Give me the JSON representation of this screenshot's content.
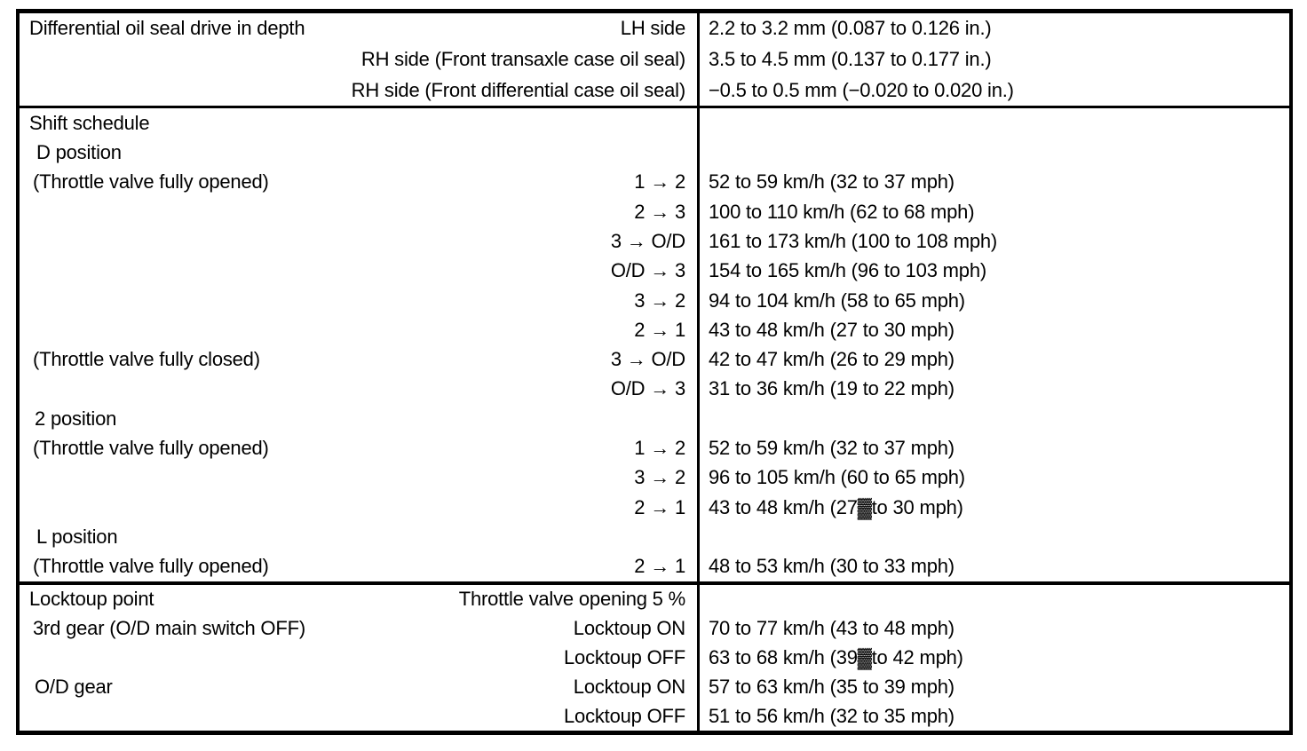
{
  "table": {
    "colors": {
      "border": "#000000",
      "background": "#ffffff",
      "text": "#000000"
    },
    "sections": [
      {
        "rows": [
          {
            "left": "Differential oil seal drive in depth",
            "sub": "LH side",
            "value": "2.2 to 3.2 mm (0.087 to 0.126 in.)"
          },
          {
            "left": "",
            "sub": "RH side (Front transaxle case oil seal)",
            "value": "3.5 to 4.5 mm (0.137 to 0.177 in.)"
          },
          {
            "left": "",
            "sub": "RH side (Front differential case oil seal)",
            "value": "−0.5 to 0.5 mm (−0.020 to 0.020 in.)"
          }
        ]
      },
      {
        "rows": [
          {
            "left": "Shift schedule",
            "sub": "",
            "value": ""
          },
          {
            "left": "D position",
            "sub": "",
            "value": ""
          },
          {
            "left": "(Throttle valve fully opened)",
            "sub": "1 → 2",
            "value": "52 to 59 km/h (32 to 37 mph)"
          },
          {
            "left": "",
            "sub": "2 → 3",
            "value": "100 to 110 km/h (62 to 68 mph)"
          },
          {
            "left": "",
            "sub": "3 → O/D",
            "value": "161 to 173 km/h (100 to 108 mph)"
          },
          {
            "left": "",
            "sub": "O/D → 3",
            "value": "154 to 165 km/h (96 to 103 mph)"
          },
          {
            "left": "",
            "sub": "3 → 2",
            "value": "94 to 104 km/h (58 to 65 mph)"
          },
          {
            "left": "",
            "sub": "2 → 1",
            "value": "43 to 48 km/h (27 to 30 mph)"
          },
          {
            "left": "(Throttle valve fully closed)",
            "sub": "3 → O/D",
            "value": "42 to 47 km/h (26 to 29 mph)"
          },
          {
            "left": "",
            "sub": "O/D → 3",
            "value": "31 to 36 km/h (19 to 22 mph)"
          },
          {
            "left": "2 position",
            "sub": "",
            "value": ""
          },
          {
            "left": "(Throttle valve fully opened)",
            "sub": "1 → 2",
            "value": "52 to 59 km/h (32 to 37 mph)"
          },
          {
            "left": "",
            "sub": "3 → 2",
            "value": "96 to 105 km/h (60 to 65 mph)"
          },
          {
            "left": "",
            "sub": "2 → 1",
            "value": "43 to 48 km/h (27▓to 30 mph)"
          },
          {
            "left": "L position",
            "sub": "",
            "value": ""
          },
          {
            "left": "(Throttle valve fully opened)",
            "sub": "2 → 1",
            "value": "48 to 53 km/h (30 to 33 mph)"
          }
        ]
      },
      {
        "rows": [
          {
            "left": "Locktoup point",
            "sub": "Throttle valve opening 5 %",
            "value": ""
          },
          {
            "left": "3rd gear (O/D main switch OFF)",
            "sub": "Locktoup ON",
            "value": "70 to 77 km/h (43 to 48 mph)"
          },
          {
            "left": "",
            "sub": "Locktoup OFF",
            "value": "63 to 68 km/h (39▓to 42 mph)"
          },
          {
            "left": "O/D gear",
            "sub": "Locktoup ON",
            "value": "57 to 63 km/h (35 to 39 mph)"
          },
          {
            "left": "",
            "sub": "Locktoup OFF",
            "value": "51 to 56 km/h (32 to 35 mph)"
          }
        ]
      }
    ]
  }
}
